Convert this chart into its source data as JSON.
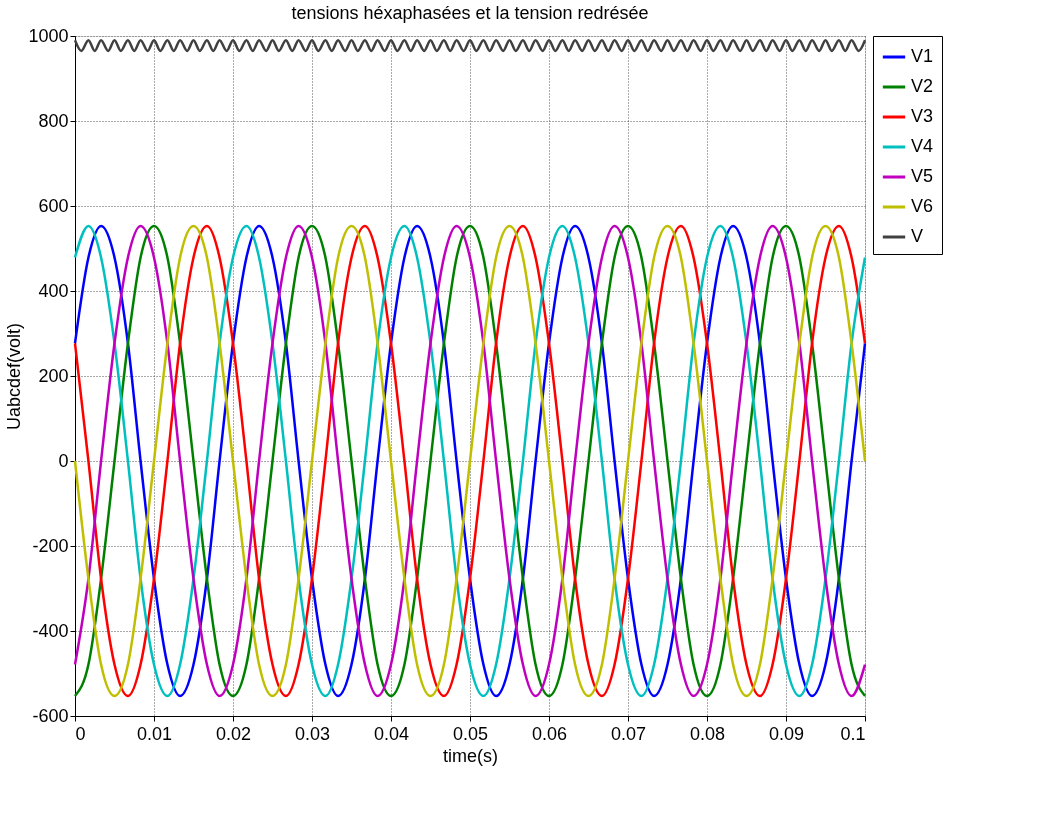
{
  "chart_data": {
    "type": "line",
    "title": "tensions héxaphasées et la tension redrésée",
    "xlabel": "time(s)",
    "ylabel": "Uabcdef(volt)",
    "xlim": [
      0,
      0.1
    ],
    "xticks": [
      0,
      0.01,
      0.02,
      0.03,
      0.04,
      0.05,
      0.06,
      0.07,
      0.08,
      0.09,
      0.1
    ],
    "ylim": [
      -600,
      1000
    ],
    "yticks": [
      -600,
      -400,
      -200,
      0,
      200,
      400,
      600,
      800,
      1000
    ],
    "grid": true,
    "legend": "top right",
    "marker": "none",
    "line_style": "solid",
    "x": [
      0,
      0.0017,
      0.0033,
      0.005,
      0.0067,
      0.0083,
      0.01,
      0.0117,
      0.0133,
      0.015,
      0.0167,
      0.0183,
      0.02,
      0.0217,
      0.0233,
      0.025,
      0.0267,
      0.0283,
      0.03,
      0.0317,
      0.0333,
      0.035,
      0.0367,
      0.0383,
      0.04,
      0.0417,
      0.0433,
      0.045,
      0.0467,
      0.0483,
      0.05,
      0.0517,
      0.0533,
      0.055,
      0.0567,
      0.0583,
      0.06,
      0.0617,
      0.0633,
      0.065,
      0.0667,
      0.0683,
      0.07,
      0.0717,
      0.0733,
      0.075,
      0.0767,
      0.0783,
      0.08,
      0.0817,
      0.0833,
      0.085,
      0.0867,
      0.0883,
      0.09,
      0.0917,
      0.0933,
      0.095,
      0.0967,
      0.0983,
      0.1
    ],
    "series": [
      {
        "name": "V1",
        "color": "#0000ff",
        "values": [
          277,
          479,
          553,
          479,
          277,
          0,
          -277,
          -479,
          -553,
          -479,
          -277,
          0,
          277,
          479,
          553,
          479,
          277,
          0,
          -277,
          -479,
          -553,
          -479,
          -277,
          0,
          277,
          479,
          553,
          479,
          277,
          0,
          -277,
          -479,
          -553,
          -479,
          -277,
          0,
          277,
          479,
          553,
          479,
          277,
          0,
          -277,
          -479,
          -553,
          -479,
          -277,
          0,
          277,
          479,
          553,
          479,
          277,
          0,
          -277,
          -479,
          -553,
          -479,
          -277,
          0,
          277
        ]
      },
      {
        "name": "V2",
        "color": "#008000",
        "values": [
          -553,
          -479,
          -277,
          0,
          277,
          479,
          553,
          479,
          277,
          0,
          -277,
          -479,
          -553,
          -479,
          -277,
          0,
          277,
          479,
          553,
          479,
          277,
          0,
          -277,
          -479,
          -553,
          -479,
          -277,
          0,
          277,
          479,
          553,
          479,
          277,
          0,
          -277,
          -479,
          -553,
          -479,
          -277,
          0,
          277,
          479,
          553,
          479,
          277,
          0,
          -277,
          -479,
          -553,
          -479,
          -277,
          0,
          277,
          479,
          553,
          479,
          277,
          0,
          -277,
          -479,
          -553
        ]
      },
      {
        "name": "V3",
        "color": "#ff0000",
        "values": [
          277,
          0,
          -277,
          -479,
          -553,
          -479,
          -277,
          0,
          277,
          479,
          553,
          479,
          277,
          0,
          -277,
          -479,
          -553,
          -479,
          -277,
          0,
          277,
          479,
          553,
          479,
          277,
          0,
          -277,
          -479,
          -553,
          -479,
          -277,
          0,
          277,
          479,
          553,
          479,
          277,
          0,
          -277,
          -479,
          -553,
          -479,
          -277,
          0,
          277,
          479,
          553,
          479,
          277,
          0,
          -277,
          -479,
          -553,
          -479,
          -277,
          0,
          277,
          479,
          553,
          479,
          277
        ]
      },
      {
        "name": "V4",
        "color": "#00bfbf",
        "values": [
          479,
          553,
          479,
          277,
          0,
          -277,
          -479,
          -553,
          -479,
          -277,
          0,
          277,
          479,
          553,
          479,
          277,
          0,
          -277,
          -479,
          -553,
          -479,
          -277,
          0,
          277,
          479,
          553,
          479,
          277,
          0,
          -277,
          -479,
          -553,
          -479,
          -277,
          0,
          277,
          479,
          553,
          479,
          277,
          0,
          -277,
          -479,
          -553,
          -479,
          -277,
          0,
          277,
          479,
          553,
          479,
          277,
          0,
          -277,
          -479,
          -553,
          -479,
          -277,
          0,
          277,
          479
        ]
      },
      {
        "name": "V5",
        "color": "#bf00bf",
        "values": [
          -479,
          -277,
          0,
          277,
          479,
          553,
          479,
          277,
          0,
          -277,
          -479,
          -553,
          -479,
          -277,
          0,
          277,
          479,
          553,
          479,
          277,
          0,
          -277,
          -479,
          -553,
          -479,
          -277,
          0,
          277,
          479,
          553,
          479,
          277,
          0,
          -277,
          -479,
          -553,
          -479,
          -277,
          0,
          277,
          479,
          553,
          479,
          277,
          0,
          -277,
          -479,
          -553,
          -479,
          -277,
          0,
          277,
          479,
          553,
          479,
          277,
          0,
          -277,
          -479,
          -553,
          -479
        ]
      },
      {
        "name": "V6",
        "color": "#bfbf00",
        "values": [
          0,
          -277,
          -479,
          -553,
          -479,
          -277,
          0,
          277,
          479,
          553,
          479,
          277,
          0,
          -277,
          -479,
          -553,
          -479,
          -277,
          0,
          277,
          479,
          553,
          479,
          277,
          0,
          -277,
          -479,
          -553,
          -479,
          -277,
          0,
          277,
          479,
          553,
          479,
          277,
          0,
          -277,
          -479,
          -553,
          -479,
          -277,
          0,
          277,
          479,
          553,
          479,
          277,
          0,
          -277,
          -479,
          -553,
          -479,
          -277,
          0,
          277,
          479,
          553,
          479,
          277,
          0
        ]
      },
      {
        "name": "V",
        "color": "#404040",
        "x": [
          0,
          0.0008,
          0.0017,
          0.0025,
          0.0033,
          0.0042,
          0.005,
          0.0058,
          0.0067,
          0.0075,
          0.0083,
          0.0092,
          0.01,
          0.0108,
          0.0117,
          0.0125,
          0.0133,
          0.0142,
          0.015,
          0.0158,
          0.0167,
          0.0175,
          0.0183,
          0.0192,
          0.02,
          0.0208,
          0.0217,
          0.0225,
          0.0233,
          0.0242,
          0.025,
          0.0258,
          0.0267,
          0.0275,
          0.0283,
          0.0292,
          0.03,
          0.0308,
          0.0317,
          0.0325,
          0.0333,
          0.0342,
          0.035,
          0.0358,
          0.0367,
          0.0375,
          0.0383,
          0.0392,
          0.04,
          0.0408,
          0.0417,
          0.0425,
          0.0433,
          0.0442,
          0.045,
          0.0458,
          0.0467,
          0.0475,
          0.0483,
          0.0492,
          0.05,
          0.0508,
          0.0517,
          0.0525,
          0.0533,
          0.0542,
          0.055,
          0.0558,
          0.0567,
          0.0575,
          0.0583,
          0.0592,
          0.06,
          0.0608,
          0.0617,
          0.0625,
          0.0633,
          0.0642,
          0.065,
          0.0658,
          0.0667,
          0.0675,
          0.0683,
          0.0692,
          0.07,
          0.0708,
          0.0717,
          0.0725,
          0.0733,
          0.0742,
          0.075,
          0.0758,
          0.0767,
          0.0775,
          0.0783,
          0.0792,
          0.08,
          0.0808,
          0.0817,
          0.0825,
          0.0833,
          0.0842,
          0.085,
          0.0858,
          0.0867,
          0.0875,
          0.0883,
          0.0892,
          0.09,
          0.0908,
          0.0917,
          0.0925,
          0.0933,
          0.0942,
          0.095,
          0.0958,
          0.0967,
          0.0975,
          0.0983,
          0.0992,
          0.1
        ],
        "values": [
          990,
          965,
          990,
          965,
          990,
          965,
          990,
          965,
          990,
          965,
          990,
          965,
          990,
          965,
          990,
          965,
          990,
          965,
          990,
          965,
          990,
          965,
          990,
          965,
          990,
          965,
          990,
          965,
          990,
          965,
          990,
          965,
          990,
          965,
          990,
          965,
          990,
          965,
          990,
          965,
          990,
          965,
          990,
          965,
          990,
          965,
          990,
          965,
          990,
          965,
          990,
          965,
          990,
          965,
          990,
          965,
          990,
          965,
          990,
          965,
          990,
          965,
          990,
          965,
          990,
          965,
          990,
          965,
          990,
          965,
          990,
          965,
          990,
          965,
          990,
          965,
          990,
          965,
          990,
          965,
          990,
          965,
          990,
          965,
          990,
          965,
          990,
          965,
          990,
          965,
          990,
          965,
          990,
          965,
          990,
          965,
          990,
          965,
          990,
          965,
          990,
          965,
          990,
          965,
          990,
          965,
          990,
          965,
          990,
          965,
          990,
          965,
          990,
          965,
          990,
          965,
          990,
          965,
          990,
          965,
          990
        ]
      }
    ]
  }
}
